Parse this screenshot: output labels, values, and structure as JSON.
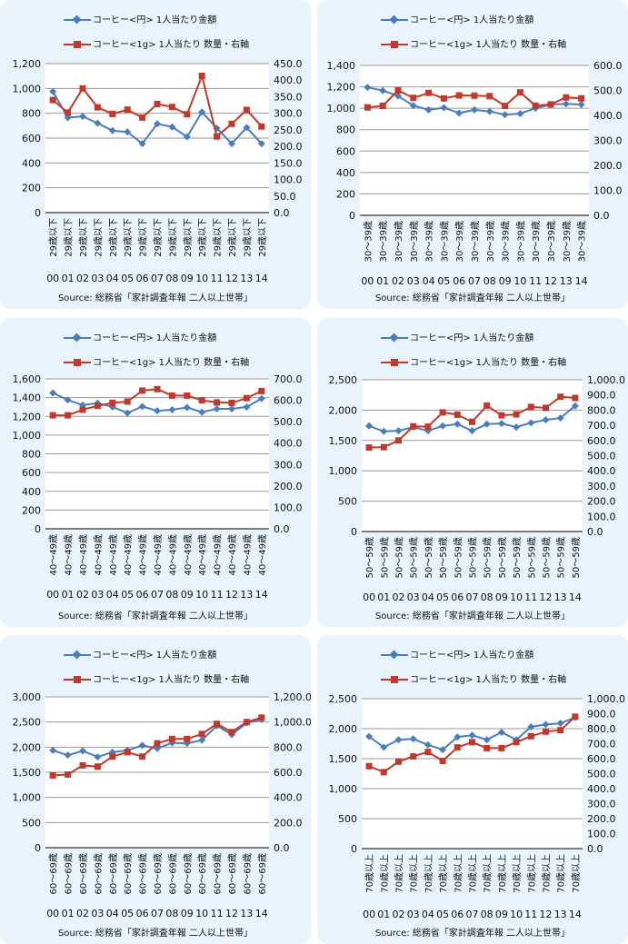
{
  "legend": {
    "spend": "コーヒー<円> 1人当たり金額",
    "volume": "コーヒー<1g> 1人当たり 数量・右軸"
  },
  "colors": {
    "spend": "#4a7dbd",
    "volume": "#c0392b",
    "panel_bg": "#e8f3fb"
  },
  "panels": [
    {
      "cat_label": "29歳以下",
      "source": "Source: 総務省「家計調査年報 二人以上世帯」",
      "left_ticks": [
        "1,200",
        "1,000",
        "800",
        "600",
        "400",
        "200",
        "0"
      ],
      "right_ticks": [
        "450.0",
        "400.0",
        "350.0",
        "300.0",
        "250.0",
        "200.0",
        "150.0",
        "100.0",
        "50.0",
        "0.0"
      ]
    },
    {
      "cat_label": "30～39歳",
      "source": "Source: 総務省「家計調査年報 二人以上世帯」",
      "left_ticks": [
        "1,400",
        "1,200",
        "1,000",
        "800",
        "600",
        "400",
        "200",
        "0"
      ],
      "right_ticks": [
        "600.0",
        "500.0",
        "400.0",
        "300.0",
        "200.0",
        "100.0",
        "0.0"
      ]
    },
    {
      "cat_label": "40～49歳",
      "source": "Source: 総務省「家計調査年報 二人以上世帯」",
      "left_ticks": [
        "1,600",
        "1,400",
        "1,200",
        "1,000",
        "800",
        "600",
        "400",
        "200",
        "0"
      ],
      "right_ticks": [
        "700.0",
        "600.0",
        "500.0",
        "400.0",
        "300.0",
        "200.0",
        "100.0",
        "0.0"
      ]
    },
    {
      "cat_label": "50～59歳",
      "source": "Source: 総務省「家計調査年報 二人以上世帯」",
      "left_ticks": [
        "2,500",
        "2,000",
        "1,500",
        "1,000",
        "500",
        "0"
      ],
      "right_ticks": [
        "1,000.0",
        "900.0",
        "800.0",
        "700.0",
        "600.0",
        "500.0",
        "400.0",
        "300.0",
        "200.0",
        "100.0",
        "0.0"
      ]
    },
    {
      "cat_label": "60～69歳",
      "source": "Source: 総務省「家計調査年報 二人以上世帯」",
      "left_ticks": [
        "3,000",
        "2,500",
        "2,000",
        "1,500",
        "1,000",
        "500",
        "0"
      ],
      "right_ticks": [
        "1,200.0",
        "1,000.0",
        "800.0",
        "600.0",
        "400.0",
        "200.0",
        "0.0"
      ]
    },
    {
      "cat_label": "70歳以上",
      "source": "Source: 総務省「家計調査年報 二人以上世帯」",
      "left_ticks": [
        "2,500",
        "2,000",
        "1,500",
        "1,000",
        "500",
        "0"
      ],
      "right_ticks": [
        "1,000.0",
        "900.0",
        "800.0",
        "700.0",
        "600.0",
        "500.0",
        "400.0",
        "300.0",
        "200.0",
        "100.0",
        "0.0"
      ]
    }
  ],
  "chart_data": [
    {
      "type": "line",
      "categories": [
        "00",
        "01",
        "02",
        "03",
        "04",
        "05",
        "06",
        "07",
        "08",
        "09",
        "10",
        "11",
        "12",
        "13",
        "14"
      ],
      "category_label": "29歳以下",
      "left_ylim": [
        0,
        1200
      ],
      "right_ylim": [
        0,
        450
      ],
      "series": [
        {
          "name": "コーヒー<円> 1人当たり金額",
          "axis": "left",
          "values": [
            975,
            765,
            775,
            720,
            660,
            650,
            555,
            715,
            690,
            610,
            810,
            680,
            555,
            685,
            555
          ]
        },
        {
          "name": "コーヒー<1g> 1人当たり 数量・右軸",
          "axis": "right",
          "values": [
            340,
            302,
            375,
            318,
            298,
            311,
            287,
            328,
            319,
            297,
            413,
            230,
            268,
            310,
            260
          ]
        }
      ]
    },
    {
      "type": "line",
      "categories": [
        "00",
        "01",
        "02",
        "03",
        "04",
        "05",
        "06",
        "07",
        "08",
        "09",
        "10",
        "11",
        "12",
        "13",
        "14"
      ],
      "category_label": "30～39歳",
      "left_ylim": [
        0,
        1400
      ],
      "right_ylim": [
        0,
        600
      ],
      "series": [
        {
          "name": "コーヒー<円> 1人当たり金額",
          "axis": "left",
          "values": [
            1195,
            1165,
            1115,
            1025,
            985,
            1005,
            955,
            985,
            970,
            940,
            950,
            1000,
            1035,
            1040,
            1035
          ]
        },
        {
          "name": "コーヒー<1g> 1人当たり 数量・右軸",
          "axis": "right",
          "values": [
            432,
            438,
            500,
            470,
            490,
            468,
            480,
            479,
            477,
            438,
            492,
            439,
            444,
            472,
            468
          ]
        }
      ]
    },
    {
      "type": "line",
      "categories": [
        "00",
        "01",
        "02",
        "03",
        "04",
        "05",
        "06",
        "07",
        "08",
        "09",
        "10",
        "11",
        "12",
        "13",
        "14"
      ],
      "category_label": "40～49歳",
      "left_ylim": [
        0,
        1600
      ],
      "right_ylim": [
        0,
        700
      ],
      "series": [
        {
          "name": "コーヒー<円> 1人当たり金額",
          "axis": "left",
          "values": [
            1450,
            1375,
            1320,
            1340,
            1300,
            1235,
            1305,
            1260,
            1270,
            1295,
            1245,
            1280,
            1280,
            1300,
            1390
          ]
        },
        {
          "name": "コーヒー<1g> 1人当たり 数量・右軸",
          "axis": "right",
          "values": [
            530,
            530,
            556,
            574,
            588,
            594,
            645,
            652,
            622,
            622,
            600,
            590,
            588,
            610,
            643
          ]
        }
      ]
    },
    {
      "type": "line",
      "categories": [
        "00",
        "01",
        "02",
        "03",
        "04",
        "05",
        "06",
        "07",
        "08",
        "09",
        "10",
        "11",
        "12",
        "13",
        "14"
      ],
      "category_label": "50～59歳",
      "left_ylim": [
        0,
        2500
      ],
      "right_ylim": [
        0,
        1000
      ],
      "series": [
        {
          "name": "コーヒー<円> 1人当たり金額",
          "axis": "left",
          "values": [
            1740,
            1650,
            1660,
            1720,
            1660,
            1740,
            1770,
            1660,
            1770,
            1780,
            1720,
            1790,
            1840,
            1870,
            2070
          ]
        },
        {
          "name": "コーヒー<1g> 1人当たり 数量・右軸",
          "axis": "right",
          "values": [
            553,
            556,
            600,
            693,
            691,
            785,
            770,
            723,
            830,
            766,
            772,
            821,
            815,
            888,
            880
          ]
        }
      ]
    },
    {
      "type": "line",
      "categories": [
        "00",
        "01",
        "02",
        "03",
        "04",
        "05",
        "06",
        "07",
        "08",
        "09",
        "10",
        "11",
        "12",
        "13",
        "14"
      ],
      "category_label": "60～69歳",
      "left_ylim": [
        0,
        3000
      ],
      "right_ylim": [
        0,
        1200
      ],
      "series": [
        {
          "name": "コーヒー<円> 1人当たり金額",
          "axis": "left",
          "values": [
            1935,
            1840,
            1925,
            1805,
            1900,
            1935,
            2035,
            1975,
            2085,
            2075,
            2140,
            2425,
            2250,
            2480,
            2550
          ]
        },
        {
          "name": "コーヒー<1g> 1人当たり 数量・右軸",
          "axis": "right",
          "values": [
            575,
            582,
            655,
            645,
            725,
            760,
            725,
            830,
            865,
            865,
            905,
            985,
            920,
            1000,
            1035
          ]
        }
      ]
    },
    {
      "type": "line",
      "categories": [
        "00",
        "01",
        "02",
        "03",
        "04",
        "05",
        "06",
        "07",
        "08",
        "09",
        "10",
        "11",
        "12",
        "13",
        "14"
      ],
      "category_label": "70歳以上",
      "left_ylim": [
        0,
        2500
      ],
      "right_ylim": [
        0,
        1000
      ],
      "series": [
        {
          "name": "コーヒー<円> 1人当たり金額",
          "axis": "left",
          "values": [
            1870,
            1690,
            1815,
            1830,
            1730,
            1650,
            1860,
            1890,
            1815,
            1940,
            1815,
            2030,
            2070,
            2090,
            2190
          ]
        },
        {
          "name": "コーヒー<1g> 1人当たり 数量・右軸",
          "axis": "right",
          "values": [
            550,
            510,
            580,
            615,
            645,
            585,
            675,
            710,
            670,
            670,
            710,
            750,
            780,
            790,
            880
          ]
        }
      ]
    }
  ]
}
